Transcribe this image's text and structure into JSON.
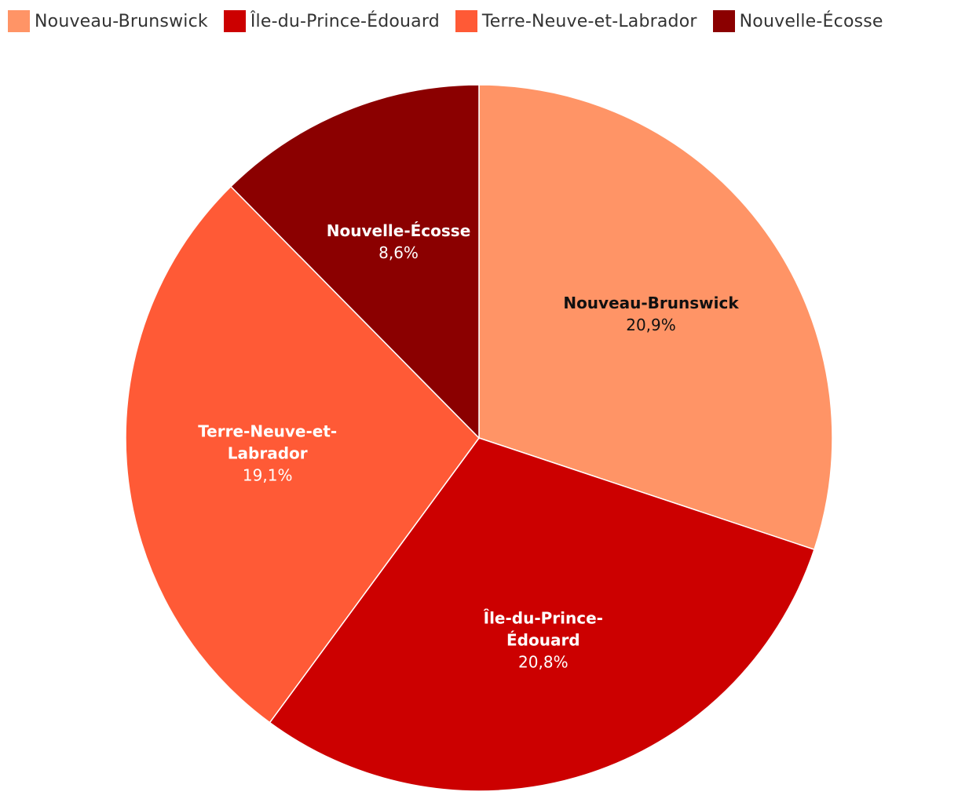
{
  "chart_data": {
    "type": "pie",
    "title": "",
    "start_angle_deg": 0,
    "direction": "clockwise",
    "legend_position": "top-left",
    "slices": [
      {
        "name": "Nouveau-Brunswick",
        "value": 20.9,
        "label": "20,9%",
        "color": "#FF9466",
        "text_color": "#111111"
      },
      {
        "name": "Île-du-Prince-Édouard",
        "value": 20.8,
        "label": "20,8%",
        "color": "#CC0000",
        "text_color": "#FFFFFF"
      },
      {
        "name": "Terre-Neuve-et-Labrador",
        "value": 19.1,
        "label": "19,1%",
        "color": "#FF5A36",
        "text_color": "#FFFFFF"
      },
      {
        "name": "Nouvelle-Écosse",
        "value": 8.6,
        "label": "8,6%",
        "color": "#8B0000",
        "text_color": "#FFFFFF"
      }
    ]
  }
}
